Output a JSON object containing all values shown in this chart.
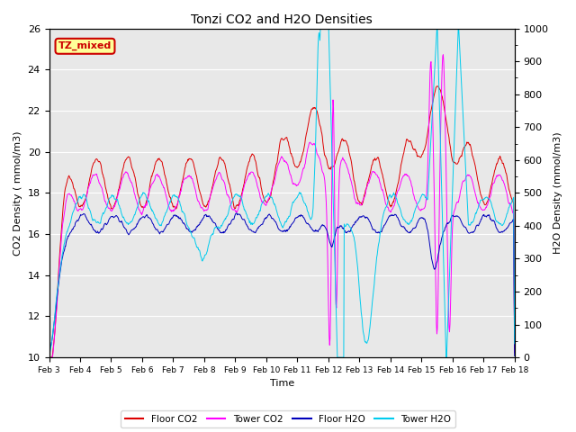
{
  "title": "Tonzi CO2 and H2O Densities",
  "xlabel": "Time",
  "ylabel_left": "CO2 Density ( mmol/m3)",
  "ylabel_right": "H2O Density (mmol/m3)",
  "ylim_left": [
    10,
    26
  ],
  "ylim_right": [
    0,
    1000
  ],
  "annotation_text": "TZ_mixed",
  "annotation_color": "#cc0000",
  "annotation_bg": "#ffff99",
  "annotation_edge": "#cc0000",
  "bg_color": "#e8e8e8",
  "legend_labels": [
    "Floor CO2",
    "Tower CO2",
    "Floor H2O",
    "Tower H2O"
  ],
  "line_colors": [
    "#dd0000",
    "#ff00ff",
    "#0000bb",
    "#00ccee"
  ],
  "xtick_labels": [
    "Feb 3",
    "Feb 4",
    "Feb 5",
    "Feb 6",
    "Feb 7",
    "Feb 8",
    "Feb 9",
    "Feb 10",
    "Feb 11",
    "Feb 12",
    "Feb 13",
    "Feb 14",
    "Feb 15",
    "Feb 16",
    "Feb 17",
    "Feb 18"
  ],
  "yticks_left": [
    10,
    12,
    14,
    16,
    18,
    20,
    22,
    24,
    26
  ],
  "yticks_right": [
    0,
    100,
    200,
    300,
    400,
    500,
    600,
    700,
    800,
    900,
    1000
  ],
  "figsize": [
    6.4,
    4.8
  ],
  "dpi": 100
}
